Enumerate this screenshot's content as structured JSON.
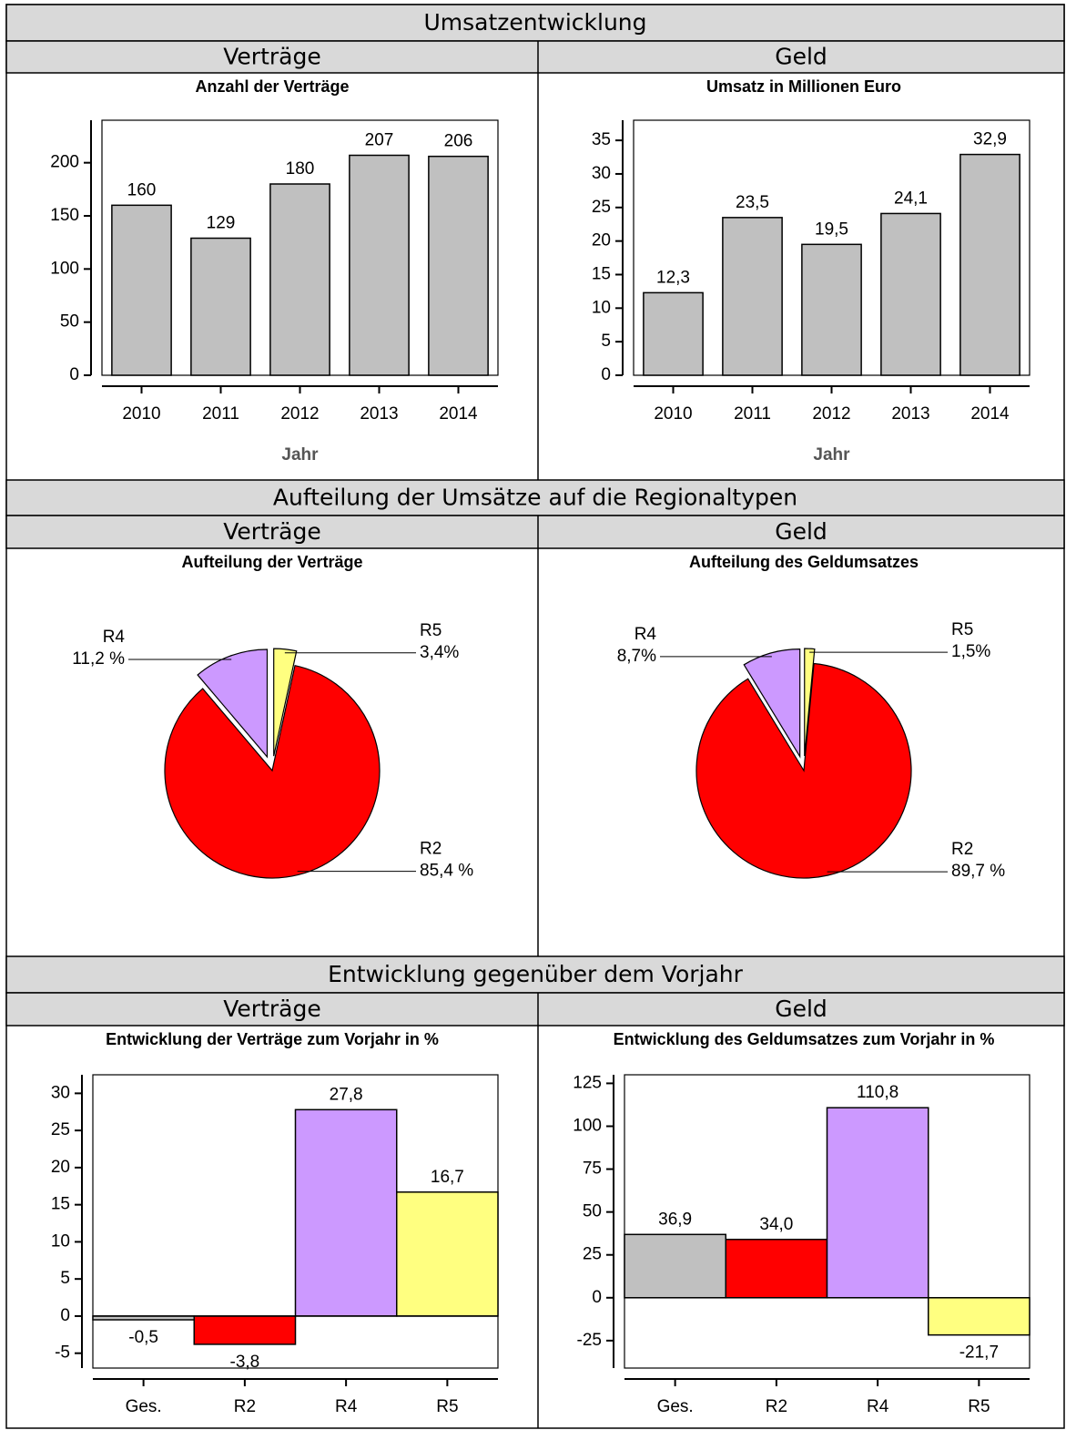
{
  "sections": [
    {
      "title": "Umsatzentwicklung",
      "columns": [
        "Verträge",
        "Geld"
      ]
    },
    {
      "title": "Aufteilung der Umsätze auf die Regionaltypen",
      "columns": [
        "Verträge",
        "Geld"
      ]
    },
    {
      "title": "Entwicklung gegenüber dem Vorjahr",
      "columns": [
        "Verträge",
        "Geld"
      ]
    }
  ],
  "chart_data": [
    {
      "type": "bar",
      "title": "Anzahl der Verträge",
      "categories": [
        "2010",
        "2011",
        "2012",
        "2013",
        "2014"
      ],
      "values": [
        160,
        129,
        180,
        207,
        206
      ],
      "color": "#c0c0c0",
      "ylim": [
        0,
        240
      ],
      "yticks": [
        0,
        50,
        100,
        150,
        200
      ],
      "xlabel": "Jahr"
    },
    {
      "type": "bar",
      "title": "Umsatz in Millionen Euro",
      "categories": [
        "2010",
        "2011",
        "2012",
        "2013",
        "2014"
      ],
      "values": [
        12.3,
        23.5,
        19.5,
        24.1,
        32.9
      ],
      "value_labels": [
        "12,3",
        "23,5",
        "19,5",
        "24,1",
        "32,9"
      ],
      "color": "#c0c0c0",
      "ylim": [
        0,
        38
      ],
      "yticks": [
        0,
        5,
        10,
        15,
        20,
        25,
        30,
        35
      ],
      "xlabel": "Jahr"
    },
    {
      "type": "pie",
      "title": "Aufteilung der Verträge",
      "categories": [
        "R2",
        "R4",
        "R5"
      ],
      "values": [
        85.4,
        11.2,
        3.4
      ],
      "value_labels": [
        "85,4 %",
        "11,2 %",
        "3,4%"
      ],
      "colors": [
        "#ff0000",
        "#cc99ff",
        "#ffff80"
      ]
    },
    {
      "type": "pie",
      "title": "Aufteilung des Geldumsatzes",
      "categories": [
        "R2",
        "R4",
        "R5"
      ],
      "values": [
        89.7,
        8.7,
        1.5
      ],
      "value_labels": [
        "89,7 %",
        "8,7%",
        "1,5%"
      ],
      "colors": [
        "#ff0000",
        "#cc99ff",
        "#ffff80"
      ]
    },
    {
      "type": "bar",
      "title": "Entwicklung der Verträge zum Vorjahr in %",
      "categories": [
        "Ges.",
        "R2",
        "R4",
        "R5"
      ],
      "values": [
        -0.5,
        -3.8,
        27.8,
        16.7
      ],
      "value_labels": [
        "-0,5",
        "-3,8",
        "27,8",
        "16,7"
      ],
      "colors": [
        "#c0c0c0",
        "#ff0000",
        "#cc99ff",
        "#ffff80"
      ],
      "ylim": [
        -7,
        32.5
      ],
      "yticks": [
        -5,
        0,
        5,
        10,
        15,
        20,
        25,
        30
      ]
    },
    {
      "type": "bar",
      "title": "Entwicklung des Geldumsatzes zum Vorjahr in %",
      "categories": [
        "Ges.",
        "R2",
        "R4",
        "R5"
      ],
      "values": [
        36.9,
        34.0,
        110.8,
        -21.7
      ],
      "value_labels": [
        "36,9",
        "34,0",
        "110,8",
        "-21,7"
      ],
      "colors": [
        "#c0c0c0",
        "#ff0000",
        "#cc99ff",
        "#ffff80"
      ],
      "ylim": [
        -41,
        130
      ],
      "yticks": [
        -25,
        0,
        25,
        50,
        75,
        100,
        125
      ]
    }
  ]
}
